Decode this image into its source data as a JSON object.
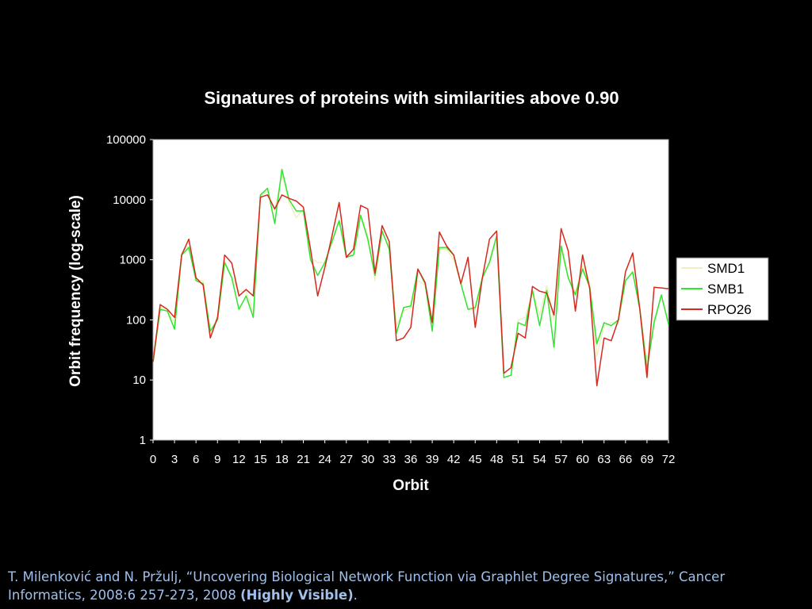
{
  "chart_data": {
    "type": "line",
    "title": "Signatures of proteins with similarities above 0.90",
    "xlabel": "Orbit",
    "ylabel": "Orbit frequency (log-scale)",
    "yscale": "log",
    "ylim": [
      1,
      100000
    ],
    "xlim": [
      0,
      72
    ],
    "x": [
      0,
      1,
      2,
      3,
      4,
      5,
      6,
      7,
      8,
      9,
      10,
      11,
      12,
      13,
      14,
      15,
      16,
      17,
      18,
      19,
      20,
      21,
      22,
      23,
      24,
      25,
      26,
      27,
      28,
      29,
      30,
      31,
      32,
      33,
      34,
      35,
      36,
      37,
      38,
      39,
      40,
      41,
      42,
      43,
      44,
      45,
      46,
      47,
      48,
      49,
      50,
      51,
      52,
      53,
      54,
      55,
      56,
      57,
      58,
      59,
      60,
      61,
      62,
      63,
      64,
      65,
      66,
      67,
      68,
      69,
      70,
      71,
      72
    ],
    "x_ticks": [
      0,
      3,
      6,
      9,
      12,
      15,
      18,
      21,
      24,
      27,
      30,
      33,
      36,
      39,
      42,
      45,
      48,
      51,
      54,
      57,
      60,
      63,
      66,
      69,
      72
    ],
    "y_ticks": [
      1,
      10,
      100,
      1000,
      10000,
      100000
    ],
    "y_tick_labels": [
      "1",
      "10",
      "100",
      "1000",
      "10000",
      "100000"
    ],
    "grid": false,
    "legend_position": "right",
    "series": [
      {
        "name": "SMD1",
        "color": "#f2eec0",
        "values": [
          22,
          160,
          140,
          90,
          1300,
          1700,
          480,
          440,
          60,
          110,
          950,
          520,
          300,
          300,
          130,
          11500,
          14000,
          6500,
          27000,
          9000,
          5000,
          7000,
          1100,
          900,
          900,
          2000,
          4500,
          1200,
          1200,
          5500,
          2500,
          450,
          2800,
          1700,
          80,
          140,
          160,
          450,
          380,
          100,
          1500,
          1500,
          1000,
          400,
          150,
          150,
          500,
          1000,
          2500,
          11,
          12,
          100,
          110,
          300,
          120,
          370,
          100,
          1500,
          500,
          280,
          800,
          400,
          25,
          80,
          90,
          90,
          450,
          650,
          150,
          20,
          100,
          250,
          90
        ]
      },
      {
        "name": "SMB1",
        "color": "#2ee62e",
        "values": [
          20,
          150,
          140,
          70,
          1200,
          1600,
          450,
          400,
          65,
          100,
          900,
          500,
          150,
          250,
          110,
          12000,
          15500,
          4000,
          32000,
          10000,
          6500,
          6500,
          1000,
          550,
          900,
          2000,
          4500,
          1100,
          1200,
          5500,
          2200,
          550,
          3000,
          1500,
          60,
          160,
          170,
          700,
          400,
          65,
          1600,
          1600,
          1200,
          400,
          150,
          160,
          500,
          900,
          2500,
          11,
          12,
          90,
          80,
          310,
          80,
          310,
          35,
          1700,
          500,
          260,
          700,
          350,
          40,
          90,
          80,
          100,
          450,
          620,
          150,
          15,
          90,
          260,
          85
        ]
      },
      {
        "name": "RPO26",
        "color": "#d42a1e",
        "values": [
          20,
          180,
          150,
          110,
          1200,
          2200,
          500,
          380,
          50,
          110,
          1200,
          880,
          250,
          320,
          250,
          11000,
          12000,
          7000,
          12000,
          10500,
          9500,
          7500,
          1500,
          250,
          750,
          2500,
          9000,
          1100,
          1500,
          8000,
          7000,
          600,
          3700,
          2000,
          45,
          50,
          75,
          700,
          420,
          90,
          2900,
          1700,
          1200,
          400,
          1100,
          75,
          500,
          2200,
          3000,
          13,
          16,
          60,
          50,
          360,
          300,
          280,
          120,
          3300,
          1400,
          140,
          1200,
          330,
          8,
          50,
          45,
          100,
          630,
          1300,
          150,
          11,
          350,
          340,
          330
        ]
      }
    ]
  },
  "citation": {
    "text": "T. Milenković and N. Pržulj, “Uncovering Biological Network Function via Graphlet Degree Signatures,” Cancer Informatics, 2008:6 257-273, 2008 ",
    "highlight": "(Highly Visible)",
    "end": "."
  }
}
